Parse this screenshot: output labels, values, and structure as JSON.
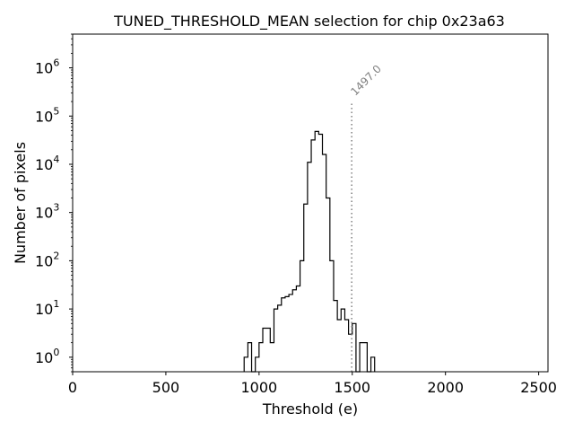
{
  "chart_data": {
    "type": "histogram",
    "title": "TUNED_THRESHOLD_MEAN selection for chip 0x23a63",
    "xlabel": "Threshold (e)",
    "ylabel": "Number of pixels",
    "xlim": [
      0,
      2550
    ],
    "ylim": [
      0.5,
      5000000
    ],
    "yscale": "log",
    "xticks": [
      0,
      500,
      1000,
      1500,
      2000,
      2500
    ],
    "xtick_labels": [
      "0",
      "500",
      "1000",
      "1500",
      "2000",
      "2500"
    ],
    "yticks": [
      1,
      10,
      100,
      1000,
      10000,
      100000,
      1000000
    ],
    "ytick_bases": [
      "10",
      "10",
      "10",
      "10",
      "10",
      "10",
      "10"
    ],
    "ytick_exponents": [
      "0",
      "1",
      "2",
      "3",
      "4",
      "5",
      "6"
    ],
    "bins": {
      "start": 920,
      "width": 20,
      "counts": [
        1,
        2,
        0,
        1,
        2,
        4,
        4,
        2,
        10,
        12,
        17,
        18,
        20,
        25,
        30,
        100,
        1500,
        11000,
        32000,
        48000,
        42000,
        16000,
        2000,
        100,
        15,
        6,
        10,
        6,
        3,
        5,
        0,
        2,
        2,
        0,
        1
      ]
    },
    "marker": {
      "x": 1497,
      "label": "1497.0",
      "line_top": 200000,
      "color": "#808080"
    },
    "colors": {
      "histogram": "#000000",
      "marker": "#808080"
    }
  }
}
